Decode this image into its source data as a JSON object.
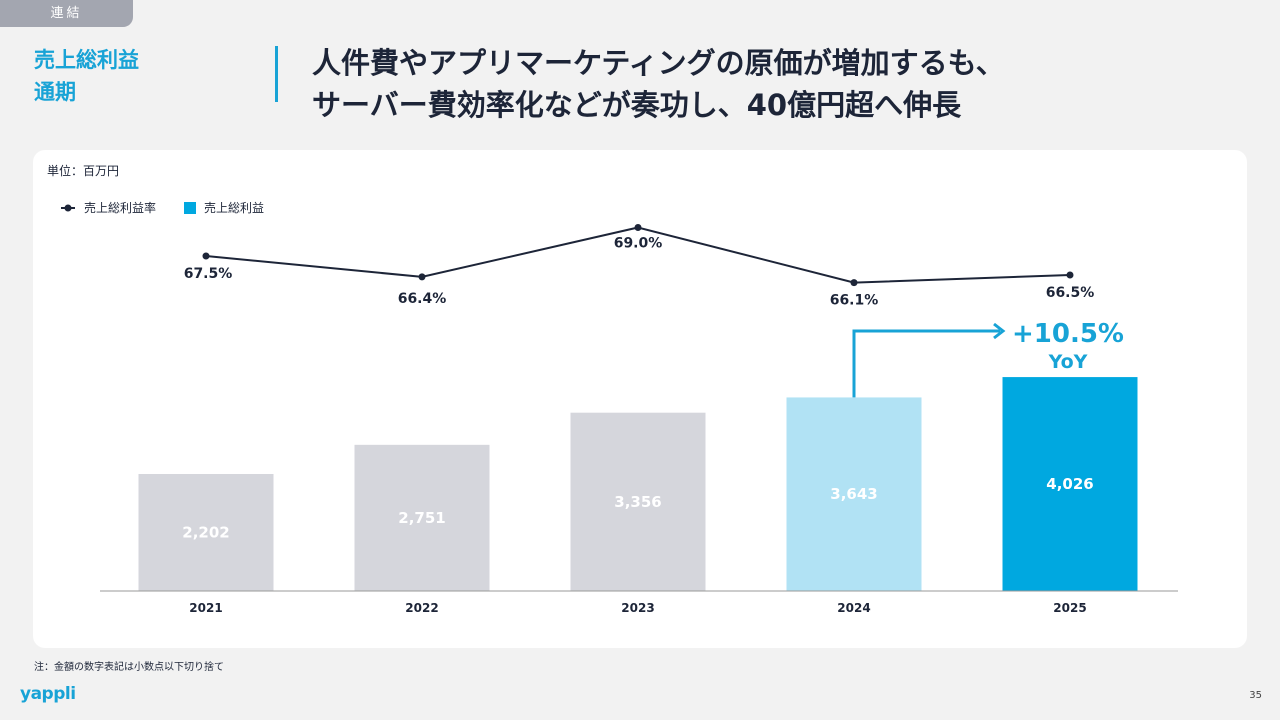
{
  "tag": "連結",
  "subtitle": [
    "売上総利益",
    "通期"
  ],
  "headline": [
    "人件費やアプリマーケティングの原価が増加するも、",
    "サーバー費効率化などが奏功し、40億円超へ伸長"
  ],
  "unit": "単位：百万円",
  "note": "注：金額の数字表記は小数点以下切り捨て",
  "logo": "yappli",
  "page_number": "35",
  "chart_data": {
    "type": "bar",
    "categories": [
      "2021",
      "2022",
      "2023",
      "2024",
      "2025"
    ],
    "series": [
      {
        "name": "売上総利益",
        "type": "bar",
        "values": [
          2202,
          2751,
          3356,
          3643,
          4026
        ],
        "labels": [
          "2,202",
          "2,751",
          "3,356",
          "3,643",
          "4,026"
        ],
        "colors": [
          "#d5d6dc",
          "#d5d6dc",
          "#d5d6dc",
          "#b1e2f4",
          "#00a8e0"
        ]
      },
      {
        "name": "売上総利益率",
        "type": "line",
        "values": [
          67.5,
          66.4,
          69.0,
          66.1,
          66.5
        ],
        "labels": [
          "67.5%",
          "66.4%",
          "69.0%",
          "66.1%",
          "66.5%"
        ],
        "color": "#1d2538"
      }
    ],
    "annotation": {
      "text": "+10.5%",
      "sub": "YoY",
      "color": "#18a3d6"
    }
  }
}
